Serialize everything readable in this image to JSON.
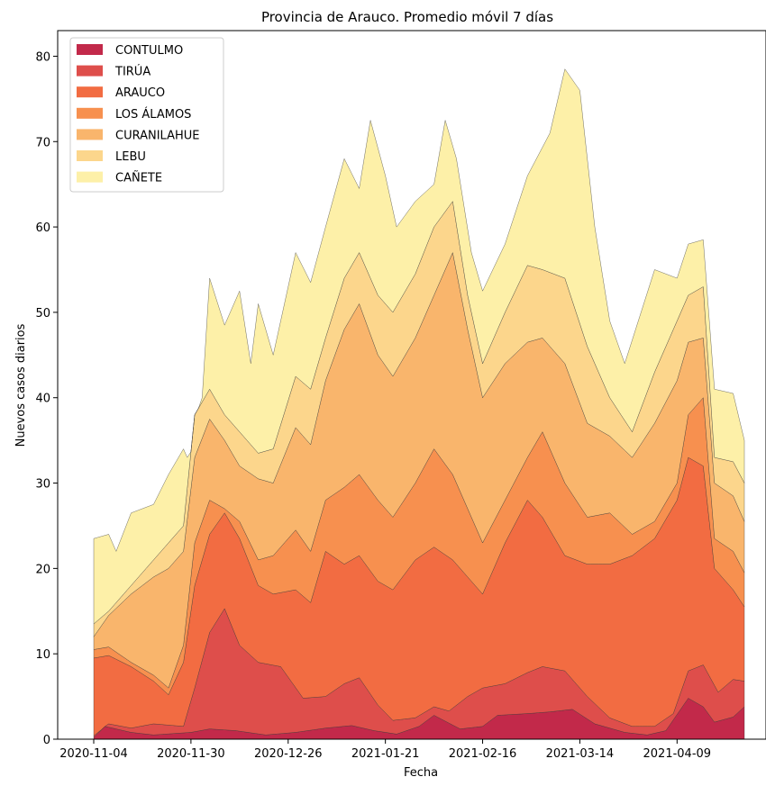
{
  "chart_data": {
    "type": "area",
    "stacked": true,
    "title": "Provincia de Arauco. Promedio móvil 7 días",
    "xlabel": "Fecha",
    "ylabel": "Nuevos casos diarios",
    "x_start": "2020-11-04",
    "x_end": "2021-04-27",
    "x_ticks": [
      "2020-11-04",
      "2020-11-30",
      "2020-12-26",
      "2021-01-21",
      "2021-02-16",
      "2021-03-14",
      "2021-04-09"
    ],
    "ylim": [
      0,
      83
    ],
    "y_ticks": [
      0,
      10,
      20,
      30,
      40,
      50,
      60,
      70,
      80
    ],
    "legend_position": "top-left",
    "grid": false,
    "series": [
      {
        "name": "CONTULMO",
        "color": "#c2294a",
        "points": [
          [
            "2020-11-04",
            0.2
          ],
          [
            "2020-11-07",
            1.5
          ],
          [
            "2020-11-14",
            0.8
          ],
          [
            "2020-11-20",
            0.5
          ],
          [
            "2020-11-30",
            0.8
          ],
          [
            "2020-12-05",
            1.2
          ],
          [
            "2020-12-12",
            1.0
          ],
          [
            "2020-12-20",
            0.5
          ],
          [
            "2020-12-28",
            0.8
          ],
          [
            "2021-01-05",
            1.3
          ],
          [
            "2021-01-12",
            1.6
          ],
          [
            "2021-01-18",
            1.0
          ],
          [
            "2021-01-24",
            0.6
          ],
          [
            "2021-01-30",
            1.5
          ],
          [
            "2021-02-03",
            2.8
          ],
          [
            "2021-02-10",
            1.2
          ],
          [
            "2021-02-16",
            1.5
          ],
          [
            "2021-02-20",
            2.8
          ],
          [
            "2021-02-28",
            3.0
          ],
          [
            "2021-03-06",
            3.2
          ],
          [
            "2021-03-12",
            3.5
          ],
          [
            "2021-03-18",
            1.8
          ],
          [
            "2021-03-26",
            0.8
          ],
          [
            "2021-04-01",
            0.5
          ],
          [
            "2021-04-06",
            1.0
          ],
          [
            "2021-04-12",
            4.8
          ],
          [
            "2021-04-16",
            3.8
          ],
          [
            "2021-04-19",
            2.0
          ],
          [
            "2021-04-24",
            2.6
          ],
          [
            "2021-04-27",
            3.8
          ]
        ]
      },
      {
        "name": "TIRÚA",
        "color": "#de4e4b",
        "points": [
          [
            "2020-11-04",
            0.4
          ],
          [
            "2020-11-08",
            1.8
          ],
          [
            "2020-11-14",
            1.3
          ],
          [
            "2020-11-20",
            1.8
          ],
          [
            "2020-11-28",
            1.5
          ],
          [
            "2020-12-01",
            6.0
          ],
          [
            "2020-12-05",
            12.5
          ],
          [
            "2020-12-09",
            15.3
          ],
          [
            "2020-12-13",
            11.0
          ],
          [
            "2020-12-18",
            9.0
          ],
          [
            "2020-12-24",
            8.5
          ],
          [
            "2020-12-30",
            4.8
          ],
          [
            "2021-01-05",
            5.0
          ],
          [
            "2021-01-10",
            6.5
          ],
          [
            "2021-01-14",
            7.2
          ],
          [
            "2021-01-19",
            4.0
          ],
          [
            "2021-01-23",
            2.2
          ],
          [
            "2021-01-29",
            2.5
          ],
          [
            "2021-02-03",
            3.8
          ],
          [
            "2021-02-07",
            3.3
          ],
          [
            "2021-02-12",
            5.0
          ],
          [
            "2021-02-16",
            6.0
          ],
          [
            "2021-02-22",
            6.5
          ],
          [
            "2021-02-28",
            7.8
          ],
          [
            "2021-03-04",
            8.5
          ],
          [
            "2021-03-10",
            8.0
          ],
          [
            "2021-03-16",
            5.0
          ],
          [
            "2021-03-22",
            2.5
          ],
          [
            "2021-03-28",
            1.5
          ],
          [
            "2021-04-03",
            1.5
          ],
          [
            "2021-04-08",
            3.0
          ],
          [
            "2021-04-12",
            8.0
          ],
          [
            "2021-04-16",
            8.7
          ],
          [
            "2021-04-20",
            5.5
          ],
          [
            "2021-04-24",
            7.0
          ],
          [
            "2021-04-27",
            6.8
          ]
        ]
      },
      {
        "name": "ARAUCO",
        "color": "#f26c42",
        "points": [
          [
            "2020-11-04",
            9.5
          ],
          [
            "2020-11-08",
            9.8
          ],
          [
            "2020-11-14",
            8.5
          ],
          [
            "2020-11-20",
            6.8
          ],
          [
            "2020-11-24",
            5.2
          ],
          [
            "2020-11-28",
            9.0
          ],
          [
            "2020-12-01",
            18.0
          ],
          [
            "2020-12-05",
            24.0
          ],
          [
            "2020-12-09",
            26.5
          ],
          [
            "2020-12-13",
            23.5
          ],
          [
            "2020-12-18",
            18.0
          ],
          [
            "2020-12-22",
            17.0
          ],
          [
            "2020-12-28",
            17.5
          ],
          [
            "2021-01-01",
            16.0
          ],
          [
            "2021-01-05",
            22.0
          ],
          [
            "2021-01-10",
            20.5
          ],
          [
            "2021-01-14",
            21.5
          ],
          [
            "2021-01-19",
            18.5
          ],
          [
            "2021-01-23",
            17.5
          ],
          [
            "2021-01-29",
            21.0
          ],
          [
            "2021-02-03",
            22.5
          ],
          [
            "2021-02-08",
            21.0
          ],
          [
            "2021-02-12",
            19.0
          ],
          [
            "2021-02-16",
            17.0
          ],
          [
            "2021-02-22",
            23.0
          ],
          [
            "2021-02-28",
            28.0
          ],
          [
            "2021-03-04",
            26.0
          ],
          [
            "2021-03-10",
            21.5
          ],
          [
            "2021-03-16",
            20.5
          ],
          [
            "2021-03-22",
            20.5
          ],
          [
            "2021-03-28",
            21.5
          ],
          [
            "2021-04-03",
            23.5
          ],
          [
            "2021-04-09",
            28.0
          ],
          [
            "2021-04-12",
            33.0
          ],
          [
            "2021-04-16",
            32.0
          ],
          [
            "2021-04-19",
            20.0
          ],
          [
            "2021-04-24",
            17.5
          ],
          [
            "2021-04-27",
            15.5
          ]
        ]
      },
      {
        "name": "LOS ÁLAMOS",
        "color": "#f7904f",
        "points": [
          [
            "2020-11-04",
            10.5
          ],
          [
            "2020-11-08",
            10.8
          ],
          [
            "2020-11-14",
            9.0
          ],
          [
            "2020-11-20",
            7.5
          ],
          [
            "2020-11-24",
            6.0
          ],
          [
            "2020-11-28",
            11.0
          ],
          [
            "2020-12-01",
            23.0
          ],
          [
            "2020-12-05",
            28.0
          ],
          [
            "2020-12-09",
            27.0
          ],
          [
            "2020-12-13",
            25.5
          ],
          [
            "2020-12-18",
            21.0
          ],
          [
            "2020-12-22",
            21.5
          ],
          [
            "2020-12-28",
            24.5
          ],
          [
            "2021-01-01",
            22.0
          ],
          [
            "2021-01-05",
            28.0
          ],
          [
            "2021-01-10",
            29.5
          ],
          [
            "2021-01-14",
            31.0
          ],
          [
            "2021-01-19",
            28.0
          ],
          [
            "2021-01-23",
            26.0
          ],
          [
            "2021-01-29",
            30.0
          ],
          [
            "2021-02-03",
            34.0
          ],
          [
            "2021-02-08",
            31.0
          ],
          [
            "2021-02-12",
            27.0
          ],
          [
            "2021-02-16",
            23.0
          ],
          [
            "2021-02-22",
            28.0
          ],
          [
            "2021-02-28",
            33.0
          ],
          [
            "2021-03-04",
            36.0
          ],
          [
            "2021-03-10",
            30.0
          ],
          [
            "2021-03-16",
            26.0
          ],
          [
            "2021-03-22",
            26.5
          ],
          [
            "2021-03-28",
            24.0
          ],
          [
            "2021-04-03",
            25.5
          ],
          [
            "2021-04-09",
            30.0
          ],
          [
            "2021-04-12",
            38.0
          ],
          [
            "2021-04-16",
            40.0
          ],
          [
            "2021-04-19",
            23.5
          ],
          [
            "2021-04-24",
            22.0
          ],
          [
            "2021-04-27",
            19.5
          ]
        ]
      },
      {
        "name": "CURANILAHUE",
        "color": "#f9b56c",
        "points": [
          [
            "2020-11-04",
            12.0
          ],
          [
            "2020-11-08",
            14.5
          ],
          [
            "2020-11-14",
            17.0
          ],
          [
            "2020-11-20",
            19.0
          ],
          [
            "2020-11-24",
            20.0
          ],
          [
            "2020-11-28",
            22.0
          ],
          [
            "2020-12-01",
            33.0
          ],
          [
            "2020-12-05",
            37.5
          ],
          [
            "2020-12-09",
            35.0
          ],
          [
            "2020-12-13",
            32.0
          ],
          [
            "2020-12-18",
            30.5
          ],
          [
            "2020-12-22",
            30.0
          ],
          [
            "2020-12-28",
            36.5
          ],
          [
            "2021-01-01",
            34.5
          ],
          [
            "2021-01-05",
            42.0
          ],
          [
            "2021-01-10",
            48.0
          ],
          [
            "2021-01-14",
            51.0
          ],
          [
            "2021-01-19",
            45.0
          ],
          [
            "2021-01-23",
            42.5
          ],
          [
            "2021-01-29",
            47.0
          ],
          [
            "2021-02-03",
            52.0
          ],
          [
            "2021-02-08",
            57.0
          ],
          [
            "2021-02-12",
            48.0
          ],
          [
            "2021-02-16",
            40.0
          ],
          [
            "2021-02-22",
            44.0
          ],
          [
            "2021-02-28",
            46.5
          ],
          [
            "2021-03-04",
            47.0
          ],
          [
            "2021-03-10",
            44.0
          ],
          [
            "2021-03-16",
            37.0
          ],
          [
            "2021-03-22",
            35.5
          ],
          [
            "2021-03-28",
            33.0
          ],
          [
            "2021-04-03",
            37.0
          ],
          [
            "2021-04-09",
            42.0
          ],
          [
            "2021-04-12",
            46.5
          ],
          [
            "2021-04-16",
            47.0
          ],
          [
            "2021-04-19",
            30.0
          ],
          [
            "2021-04-24",
            28.5
          ],
          [
            "2021-04-27",
            25.5
          ]
        ]
      },
      {
        "name": "LEBU",
        "color": "#fcd68c",
        "points": [
          [
            "2020-11-04",
            13.5
          ],
          [
            "2020-11-08",
            15.0
          ],
          [
            "2020-11-14",
            18.0
          ],
          [
            "2020-11-20",
            21.0
          ],
          [
            "2020-11-24",
            23.0
          ],
          [
            "2020-11-28",
            25.0
          ],
          [
            "2020-12-01",
            38.0
          ],
          [
            "2020-12-05",
            41.0
          ],
          [
            "2020-12-09",
            38.0
          ],
          [
            "2020-12-13",
            36.0
          ],
          [
            "2020-12-18",
            33.5
          ],
          [
            "2020-12-22",
            34.0
          ],
          [
            "2020-12-28",
            42.5
          ],
          [
            "2021-01-01",
            41.0
          ],
          [
            "2021-01-05",
            47.0
          ],
          [
            "2021-01-10",
            54.0
          ],
          [
            "2021-01-14",
            57.0
          ],
          [
            "2021-01-19",
            52.0
          ],
          [
            "2021-01-23",
            50.0
          ],
          [
            "2021-01-29",
            54.5
          ],
          [
            "2021-02-03",
            60.0
          ],
          [
            "2021-02-08",
            63.0
          ],
          [
            "2021-02-12",
            52.0
          ],
          [
            "2021-02-16",
            44.0
          ],
          [
            "2021-02-22",
            50.0
          ],
          [
            "2021-02-28",
            55.5
          ],
          [
            "2021-03-04",
            55.0
          ],
          [
            "2021-03-10",
            54.0
          ],
          [
            "2021-03-16",
            46.0
          ],
          [
            "2021-03-22",
            40.0
          ],
          [
            "2021-03-28",
            36.0
          ],
          [
            "2021-04-03",
            43.0
          ],
          [
            "2021-04-09",
            49.0
          ],
          [
            "2021-04-12",
            52.0
          ],
          [
            "2021-04-16",
            53.0
          ],
          [
            "2021-04-19",
            33.0
          ],
          [
            "2021-04-24",
            32.5
          ],
          [
            "2021-04-27",
            30.0
          ]
        ]
      },
      {
        "name": "CAÑETE",
        "color": "#fdf0a8",
        "points": [
          [
            "2020-11-04",
            23.5
          ],
          [
            "2020-11-08",
            24.0
          ],
          [
            "2020-11-10",
            22.0
          ],
          [
            "2020-11-14",
            26.5
          ],
          [
            "2020-11-20",
            27.5
          ],
          [
            "2020-11-24",
            31.0
          ],
          [
            "2020-11-28",
            34.0
          ],
          [
            "2020-11-30",
            32.0
          ],
          [
            "2020-12-03",
            40.0
          ],
          [
            "2020-12-05",
            54.0
          ],
          [
            "2020-12-09",
            48.5
          ],
          [
            "2020-12-13",
            52.5
          ],
          [
            "2020-12-16",
            44.0
          ],
          [
            "2020-12-18",
            51.0
          ],
          [
            "2020-12-22",
            45.0
          ],
          [
            "2020-12-28",
            57.0
          ],
          [
            "2021-01-01",
            53.5
          ],
          [
            "2021-01-05",
            60.0
          ],
          [
            "2021-01-10",
            68.0
          ],
          [
            "2021-01-14",
            64.5
          ],
          [
            "2021-01-17",
            72.5
          ],
          [
            "2021-01-21",
            66.0
          ],
          [
            "2021-01-24",
            60.0
          ],
          [
            "2021-01-29",
            63.0
          ],
          [
            "2021-02-03",
            65.0
          ],
          [
            "2021-02-06",
            72.5
          ],
          [
            "2021-02-09",
            68.0
          ],
          [
            "2021-02-13",
            57.0
          ],
          [
            "2021-02-16",
            52.5
          ],
          [
            "2021-02-22",
            58.0
          ],
          [
            "2021-02-28",
            66.0
          ],
          [
            "2021-03-06",
            71.0
          ],
          [
            "2021-03-10",
            78.5
          ],
          [
            "2021-03-14",
            76.0
          ],
          [
            "2021-03-18",
            60.0
          ],
          [
            "2021-03-22",
            49.0
          ],
          [
            "2021-03-26",
            44.0
          ],
          [
            "2021-04-03",
            55.0
          ],
          [
            "2021-04-09",
            54.0
          ],
          [
            "2021-04-12",
            58.0
          ],
          [
            "2021-04-16",
            58.5
          ],
          [
            "2021-04-19",
            41.0
          ],
          [
            "2021-04-24",
            40.5
          ],
          [
            "2021-04-27",
            35.0
          ]
        ]
      }
    ]
  }
}
